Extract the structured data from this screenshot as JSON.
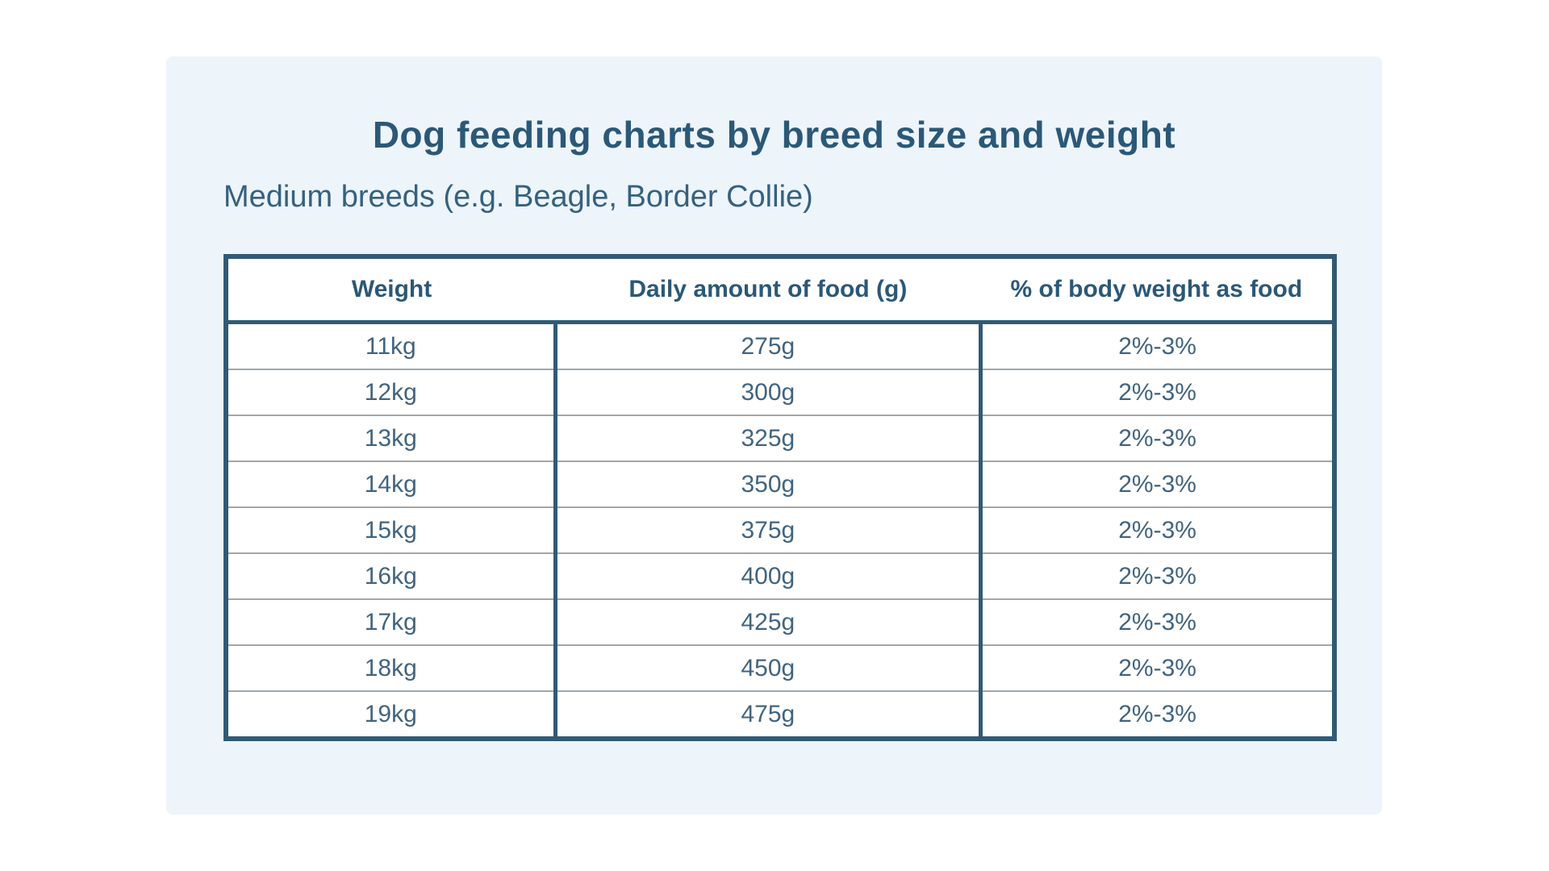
{
  "page": {
    "title": "Dog feeding charts by breed size and weight",
    "subtitle": "Medium breeds (e.g. Beagle, Border Collie)"
  },
  "table": {
    "headers": [
      "Weight",
      "Daily amount of food (g)",
      "% of body weight as food"
    ],
    "rows": [
      {
        "weight": "11kg",
        "daily_amount": "275g",
        "percent_body_weight": "2%-3%"
      },
      {
        "weight": "12kg",
        "daily_amount": "300g",
        "percent_body_weight": "2%-3%"
      },
      {
        "weight": "13kg",
        "daily_amount": "325g",
        "percent_body_weight": "2%-3%"
      },
      {
        "weight": "14kg",
        "daily_amount": "350g",
        "percent_body_weight": "2%-3%"
      },
      {
        "weight": "15kg",
        "daily_amount": "375g",
        "percent_body_weight": "2%-3%"
      },
      {
        "weight": "16kg",
        "daily_amount": "400g",
        "percent_body_weight": "2%-3%"
      },
      {
        "weight": "17kg",
        "daily_amount": "425g",
        "percent_body_weight": "2%-3%"
      },
      {
        "weight": "18kg",
        "daily_amount": "450g",
        "percent_body_weight": "2%-3%"
      },
      {
        "weight": "19kg",
        "daily_amount": "475g",
        "percent_body_weight": "2%-3%"
      }
    ]
  },
  "colors": {
    "card_background": "#edf4fa",
    "table_border": "#305a75",
    "heading_text": "#2b5877",
    "body_text": "#41647f",
    "row_separator": "#a0a7ad"
  },
  "chart_data": {
    "type": "table",
    "title": "Dog feeding charts by breed size and weight",
    "subtitle": "Medium breeds (e.g. Beagle, Border Collie)",
    "columns": [
      "Weight",
      "Daily amount of food (g)",
      "% of body weight as food"
    ],
    "rows": [
      [
        "11kg",
        "275g",
        "2%-3%"
      ],
      [
        "12kg",
        "300g",
        "2%-3%"
      ],
      [
        "13kg",
        "325g",
        "2%-3%"
      ],
      [
        "14kg",
        "350g",
        "2%-3%"
      ],
      [
        "15kg",
        "375g",
        "2%-3%"
      ],
      [
        "16kg",
        "400g",
        "2%-3%"
      ],
      [
        "17kg",
        "425g",
        "2%-3%"
      ],
      [
        "18kg",
        "450g",
        "2%-3%"
      ],
      [
        "19kg",
        "475g",
        "2%-3%"
      ]
    ],
    "weights_kg": [
      11,
      12,
      13,
      14,
      15,
      16,
      17,
      18,
      19
    ],
    "daily_food_g": [
      275,
      300,
      325,
      350,
      375,
      400,
      425,
      450,
      475
    ],
    "percent_body_weight": "2%-3%"
  }
}
